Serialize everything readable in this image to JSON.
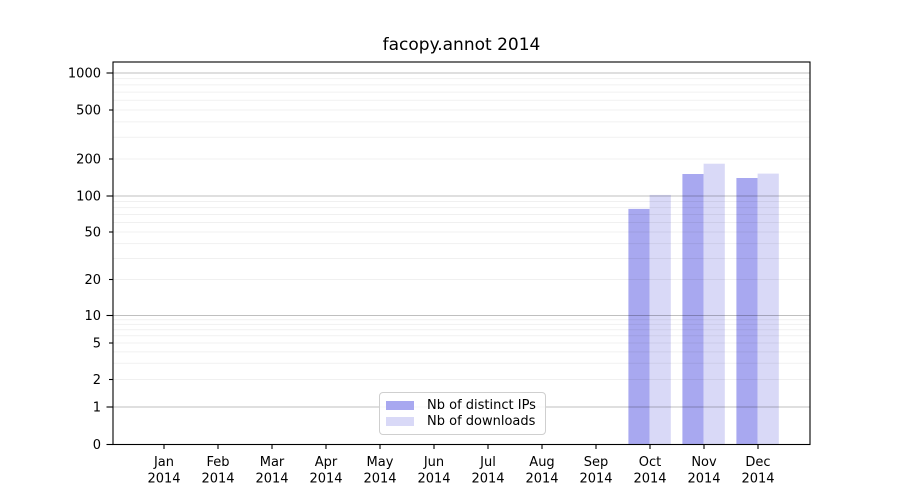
{
  "title": "facopy.annot 2014",
  "chart_data": {
    "type": "bar",
    "title": "facopy.annot 2014",
    "categories": [
      "Jan",
      "Feb",
      "Mar",
      "Apr",
      "May",
      "Jun",
      "Jul",
      "Aug",
      "Sep",
      "Oct",
      "Nov",
      "Dec"
    ],
    "category_year": "2014",
    "series": [
      {
        "name": "Nb of distinct IPs",
        "color": "#a8a8f0",
        "values": [
          0,
          0,
          0,
          0,
          0,
          0,
          0,
          0,
          0,
          78,
          151,
          140
        ]
      },
      {
        "name": "Nb of downloads",
        "color": "#d9d9f7",
        "values": [
          0,
          0,
          0,
          0,
          0,
          0,
          0,
          0,
          0,
          102,
          183,
          152
        ]
      }
    ],
    "y_axis": {
      "scale": "symlog",
      "ticks": [
        0,
        1,
        2,
        5,
        10,
        20,
        50,
        100,
        200,
        500,
        1000
      ],
      "major_ticks": [
        0,
        1,
        10,
        100,
        1000
      ]
    },
    "grid": {
      "major_values": [
        1,
        10,
        100,
        1000
      ],
      "minor_multipliers": [
        2,
        3,
        4,
        5,
        6,
        7,
        8,
        9
      ],
      "minor_decades": [
        1,
        10,
        100
      ]
    },
    "legend": {
      "position": "lower center-left",
      "entries": [
        "Nb of distinct IPs",
        "Nb of downloads"
      ]
    },
    "colors": {
      "grid_major": "rgba(0,0,0,0.25)",
      "grid_minor": "rgba(0,0,0,0.06)",
      "spine": "#000000",
      "text": "#000000"
    }
  }
}
